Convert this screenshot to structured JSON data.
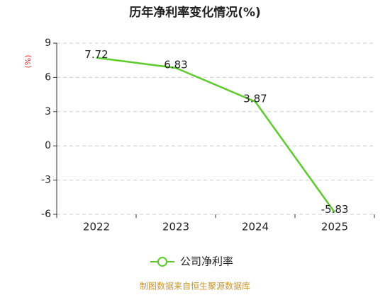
{
  "chart_data": {
    "type": "line",
    "title": "历年净利率变化情况(%)",
    "y_label": "(%)",
    "categories": [
      "2022",
      "2023",
      "2024",
      "2025"
    ],
    "series": [
      {
        "name": "公司净利率",
        "color": "#5ccb2b",
        "values": [
          7.72,
          6.83,
          3.87,
          -5.83
        ]
      }
    ],
    "ylim": [
      -6,
      9
    ],
    "yticks": [
      -6,
      -3,
      0,
      3,
      6,
      9
    ],
    "grid": true,
    "source": "制图数据来自恒生聚源数据库"
  }
}
